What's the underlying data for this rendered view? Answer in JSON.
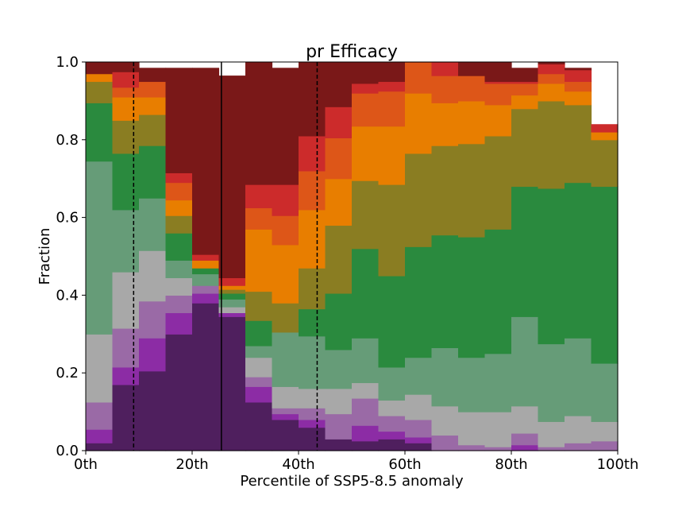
{
  "chart_data": {
    "type": "area",
    "stacked": true,
    "step": true,
    "title": "pr Efficacy",
    "xlabel": "Percentile of SSP5-8.5 anomaly",
    "ylabel": "Fraction",
    "xlim": [
      0,
      100
    ],
    "ylim": [
      0,
      1
    ],
    "xticks": [
      0,
      20,
      40,
      60,
      80,
      100
    ],
    "xtick_labels": [
      "0th",
      "20th",
      "40th",
      "60th",
      "80th",
      "100th"
    ],
    "yticks": [
      0,
      0.2,
      0.4,
      0.6,
      0.8,
      1.0
    ],
    "ytick_labels": [
      "0.0",
      "0.2",
      "0.4",
      "0.6",
      "0.8",
      "1.0"
    ],
    "bin_edges": [
      0,
      5,
      10,
      15,
      20,
      25,
      30,
      35,
      40,
      45,
      50,
      55,
      60,
      65,
      70,
      75,
      80,
      85,
      90,
      95,
      100
    ],
    "series": [
      {
        "color": "#4f1f5e",
        "values": [
          0.02,
          0.17,
          0.205,
          0.3,
          0.38,
          0.345,
          0.125,
          0.08,
          0.06,
          0.03,
          0.025,
          0.03,
          0.02,
          0.0,
          0.0,
          0.0,
          0.0,
          0.0,
          0.0,
          0.0
        ]
      },
      {
        "color": "#8c2ca5",
        "values": [
          0.035,
          0.045,
          0.085,
          0.055,
          0.025,
          0.01,
          0.04,
          0.015,
          0.02,
          0.0,
          0.04,
          0.02,
          0.015,
          0.0,
          0.0,
          0.0,
          0.015,
          0.0,
          0.0,
          0.0
        ]
      },
      {
        "color": "#9a6aa6",
        "values": [
          0.07,
          0.1,
          0.095,
          0.045,
          0.02,
          0.0,
          0.025,
          0.015,
          0.03,
          0.065,
          0.07,
          0.04,
          0.045,
          0.04,
          0.015,
          0.01,
          0.03,
          0.01,
          0.02,
          0.025
        ]
      },
      {
        "color": "#a8a8a8",
        "values": [
          0.175,
          0.145,
          0.13,
          0.045,
          0.0,
          0.015,
          0.05,
          0.055,
          0.05,
          0.065,
          0.04,
          0.04,
          0.065,
          0.075,
          0.085,
          0.09,
          0.07,
          0.065,
          0.07,
          0.05
        ]
      },
      {
        "color": "#669c78",
        "values": [
          0.445,
          0.16,
          0.135,
          0.045,
          0.03,
          0.02,
          0.03,
          0.14,
          0.135,
          0.1,
          0.115,
          0.085,
          0.095,
          0.15,
          0.14,
          0.15,
          0.23,
          0.2,
          0.2,
          0.15
        ]
      },
      {
        "color": "#2a8a3e",
        "values": [
          0.15,
          0.145,
          0.135,
          0.07,
          0.015,
          0.015,
          0.065,
          0.0,
          0.07,
          0.145,
          0.23,
          0.235,
          0.285,
          0.29,
          0.31,
          0.32,
          0.335,
          0.4,
          0.4,
          0.455
        ]
      },
      {
        "color": "#8a7d22",
        "values": [
          0.055,
          0.085,
          0.08,
          0.045,
          0.0,
          0.01,
          0.075,
          0.075,
          0.105,
          0.175,
          0.175,
          0.235,
          0.24,
          0.23,
          0.24,
          0.24,
          0.2,
          0.225,
          0.2,
          0.12
        ]
      },
      {
        "color": "#e87e00",
        "values": [
          0.02,
          0.06,
          0.045,
          0.04,
          0.02,
          0.01,
          0.16,
          0.15,
          0.15,
          0.12,
          0.14,
          0.15,
          0.155,
          0.11,
          0.11,
          0.08,
          0.035,
          0.045,
          0.035,
          0.02
        ]
      },
      {
        "color": "#dd5618",
        "values": [
          0.0,
          0.025,
          0.04,
          0.045,
          0.0,
          0.0,
          0.055,
          0.075,
          0.1,
          0.105,
          0.085,
          0.09,
          0.085,
          0.07,
          0.065,
          0.055,
          0.03,
          0.025,
          0.025,
          0.0
        ]
      },
      {
        "color": "#cc2b2b",
        "values": [
          0.0,
          0.04,
          0.0,
          0.025,
          0.015,
          0.02,
          0.06,
          0.08,
          0.09,
          0.08,
          0.025,
          0.025,
          0.025,
          0.045,
          0.0,
          0.005,
          0.005,
          0.025,
          0.03,
          0.02
        ]
      },
      {
        "color": "#7a1818",
        "values": [
          0.03,
          0.025,
          0.035,
          0.27,
          0.48,
          0.52,
          0.39,
          0.3,
          0.19,
          0.115,
          0.055,
          0.05,
          0.04,
          0.02,
          0.05,
          0.05,
          0.035,
          0.005,
          0.005,
          0.0
        ]
      }
    ],
    "vertical_lines": [
      {
        "x": 9,
        "style": "dashed",
        "color": "#000000"
      },
      {
        "x": 25.5,
        "style": "solid",
        "color": "#000000"
      },
      {
        "x": 43.5,
        "style": "dashed",
        "color": "#000000"
      }
    ],
    "grid": false,
    "legend": "none"
  }
}
